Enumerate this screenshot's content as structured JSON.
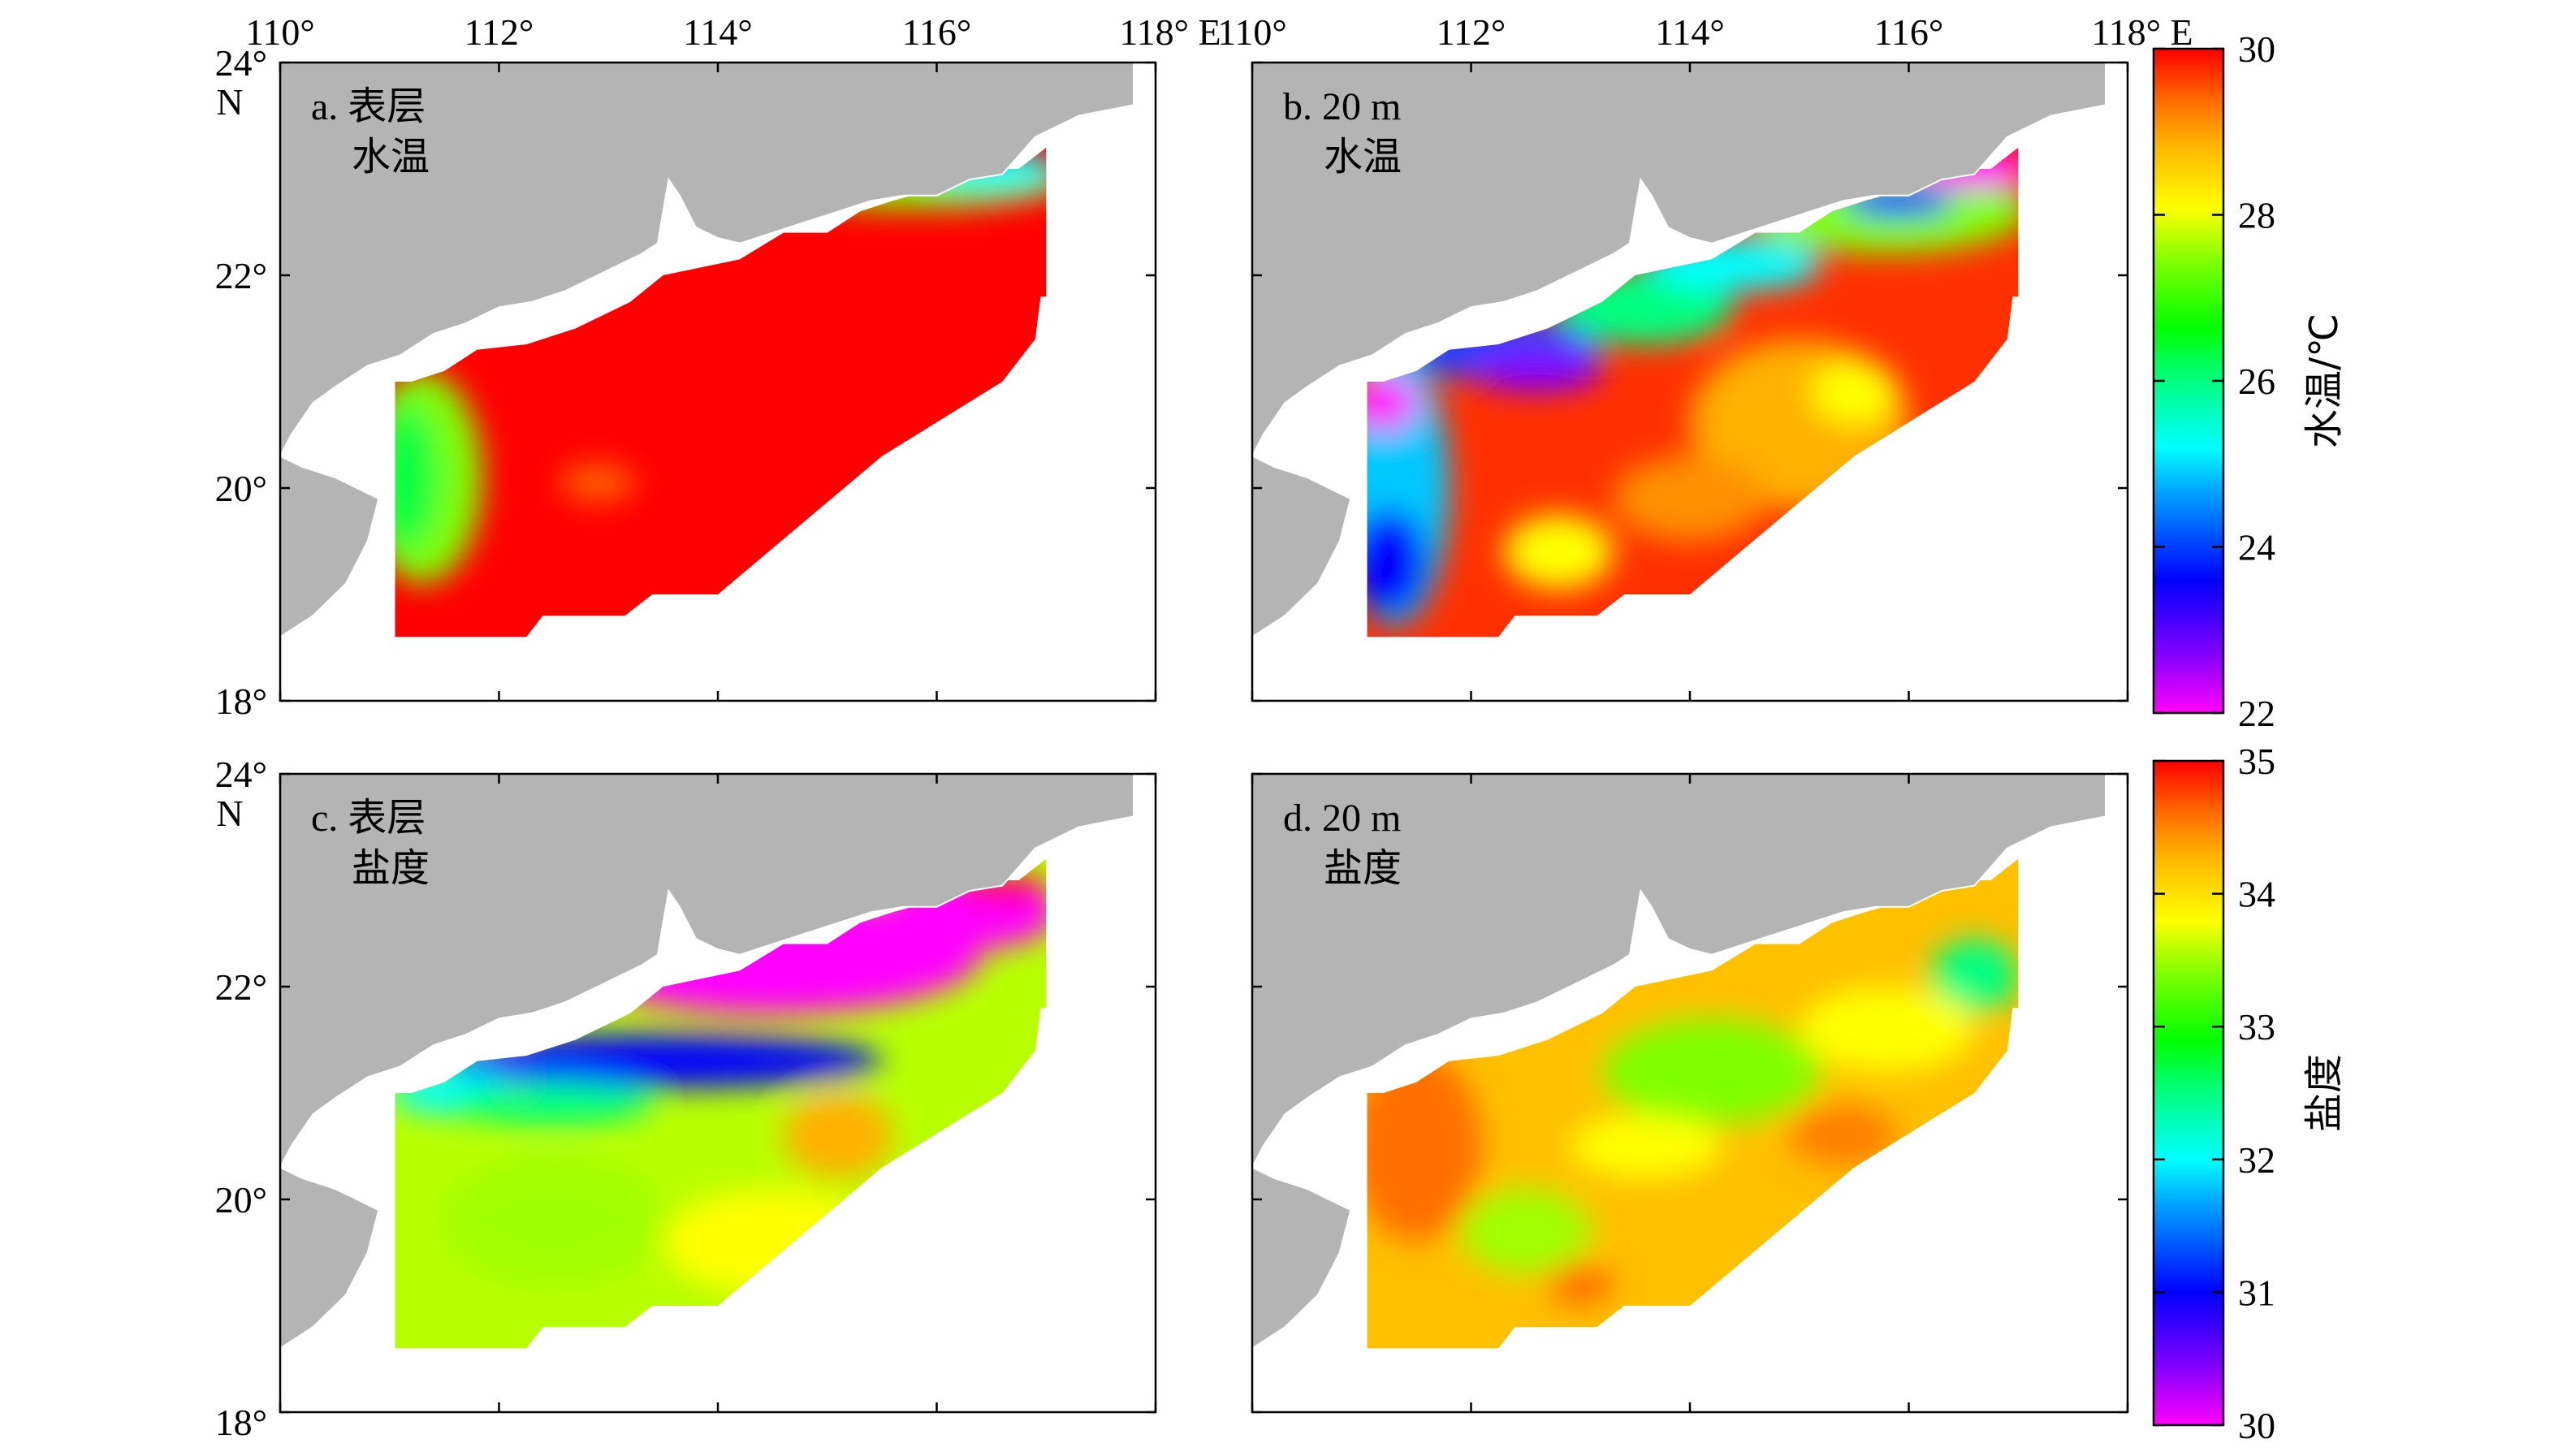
{
  "colors": {
    "land": "#b4b4b4",
    "ocean": "#ffffff",
    "frame": "#000000",
    "temperature_scale": [
      "#ff00ff",
      "#8000ff",
      "#0000ff",
      "#00a0ff",
      "#00ffff",
      "#00ff80",
      "#00ff00",
      "#80ff00",
      "#ffff00",
      "#ffb000",
      "#ff6000",
      "#ff0000"
    ],
    "salinity_scale": [
      "#ff00ff",
      "#8000ff",
      "#0000ff",
      "#00a0ff",
      "#00ffff",
      "#00ff80",
      "#00ff00",
      "#80ff00",
      "#ffff00",
      "#ffb000",
      "#ff6000",
      "#ff0000"
    ]
  },
  "axes": {
    "lon_range": [
      110,
      118
    ],
    "lat_range": [
      18,
      24
    ],
    "lon_ticks": [
      "110°",
      "112°",
      "114°",
      "116°",
      "118° E"
    ],
    "lat_ticks": [
      "24°",
      "22°",
      "20°",
      "18°"
    ],
    "lat_unit": "N"
  },
  "panels": [
    {
      "label_line1": "a. 表层",
      "label_line2": "水温",
      "variable": "temperature",
      "depth": "surface"
    },
    {
      "label_line1": "b. 20 m",
      "label_line2": "水温",
      "variable": "temperature",
      "depth": "20 m"
    },
    {
      "label_line1": "c. 表层",
      "label_line2": "盐度",
      "variable": "salinity",
      "depth": "surface"
    },
    {
      "label_line1": "d. 20 m",
      "label_line2": "盐度",
      "variable": "salinity",
      "depth": "20 m"
    }
  ],
  "colorbars": [
    {
      "title": "水温/℃",
      "ticks": [
        "30",
        "28",
        "26",
        "24",
        "22"
      ],
      "range": [
        22,
        30
      ]
    },
    {
      "title": "盐度",
      "ticks": [
        "35",
        "34",
        "33",
        "32",
        "31",
        "30"
      ],
      "range": [
        30,
        35
      ]
    }
  ]
}
